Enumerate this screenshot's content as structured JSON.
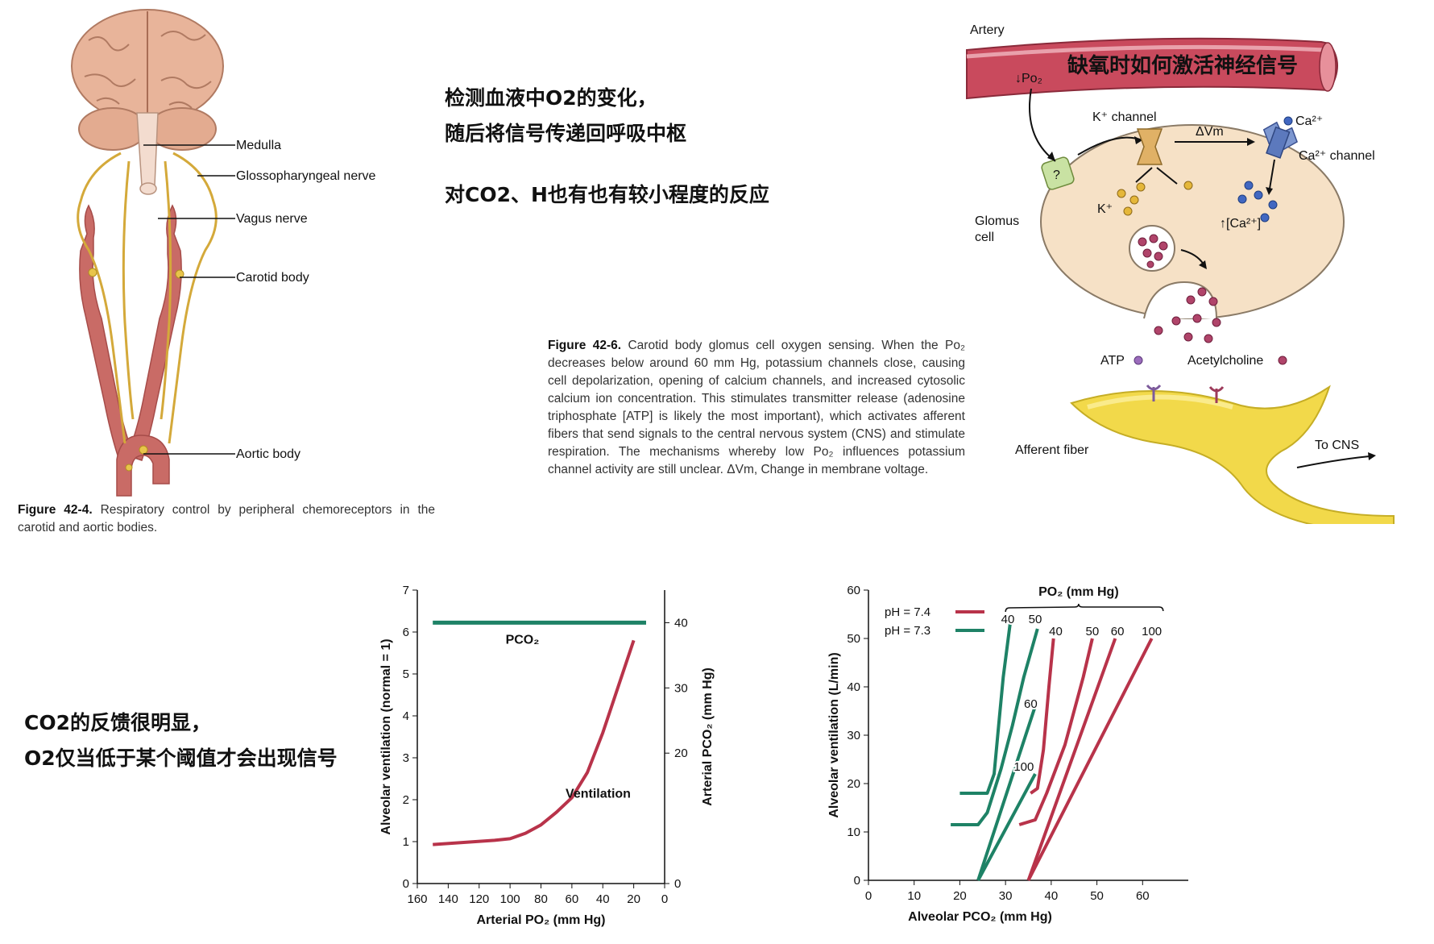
{
  "anatomy": {
    "labels": {
      "medulla": "Medulla",
      "glossopharyngeal": "Glossopharyngeal nerve",
      "vagus": "Vagus nerve",
      "carotid": "Carotid body",
      "aortic": "Aortic body"
    },
    "caption_label": "Figure 42-4.",
    "caption_text": "Respiratory control by peripheral chemoreceptors in the carotid and aortic bodies."
  },
  "notes": {
    "top_line1": "检测血液中O2的变化，",
    "top_line2": "随后将信号传递回呼吸中枢",
    "top_line3": "对CO2、H也有也有较小程度的反应",
    "left_line1": "CO2的反馈很明显，",
    "left_line2": "O2仅当低于某个阈值才会出现信号"
  },
  "glomus": {
    "artery": "Artery",
    "po2": "↓Po₂",
    "title": "缺氧时如何激活神经信号",
    "k_channel": "K⁺ channel",
    "dvm": "ΔVm",
    "ca_ion": "Ca²⁺",
    "ca_channel": "Ca²⁺ channel",
    "question": "?",
    "k_ion": "K⁺",
    "ca_rise": "↑[Ca²⁺]",
    "glomus_cell_1": "Glomus",
    "glomus_cell_2": "cell",
    "atp": "ATP",
    "ach": "Acetylcholine",
    "afferent": "Afferent fiber",
    "to_cns": "To CNS",
    "caption_label": "Figure 42-6.",
    "caption_text": "Carotid body glomus cell oxygen sensing. When the Po₂ decreases below around 60 mm Hg, potassium channels close, causing cell depolarization, opening of calcium channels, and increased cytosolic calcium ion concentration. This stimulates transmitter release (adenosine triphosphate [ATP] is likely the most important), which activates afferent fibers that send signals to the central nervous system (CNS) and stimulate respiration. The mechanisms whereby low Po₂ influences potassium channel activity are still unclear. ΔVm, Change in membrane voltage."
  },
  "colors": {
    "red": "#b8334a",
    "green": "#1e8266"
  },
  "chart_data": [
    {
      "type": "line",
      "xlabel": "Arterial PO₂ (mm Hg)",
      "ylabel": "Alveolar ventilation (normal = 1)",
      "y2label": "Arterial PCO₂ (mm Hg)",
      "xlim": [
        160,
        0
      ],
      "ylim": [
        0,
        7
      ],
      "y2lim": [
        0,
        45
      ],
      "xticks": [
        160,
        140,
        120,
        100,
        80,
        60,
        40,
        20,
        0
      ],
      "yticks": [
        0,
        1,
        2,
        3,
        4,
        5,
        6,
        7
      ],
      "y2ticks": [
        0,
        20,
        30,
        40
      ],
      "series": [
        {
          "name": "Ventilation",
          "color": "#b8334a",
          "x": [
            150,
            130,
            110,
            100,
            90,
            80,
            70,
            60,
            50,
            40,
            30,
            20
          ],
          "y": [
            0.93,
            0.98,
            1.03,
            1.07,
            1.2,
            1.4,
            1.7,
            2.05,
            2.65,
            3.6,
            4.7,
            5.8
          ]
        },
        {
          "name": "PCO₂",
          "color": "#1e8266",
          "axis": "y2",
          "x": [
            150,
            12
          ],
          "y": [
            40,
            40
          ]
        }
      ]
    },
    {
      "type": "line",
      "xlabel": "Alveolar PCO₂ (mm Hg)",
      "ylabel": "Alveolar ventilation (L/min)",
      "xlim": [
        0,
        70
      ],
      "ylim": [
        0,
        60
      ],
      "xticks": [
        0,
        10,
        20,
        30,
        40,
        50,
        60
      ],
      "yticks": [
        0,
        10,
        20,
        30,
        40,
        50,
        60
      ],
      "legend": [
        {
          "label": "pH = 7.4",
          "color": "#b8334a"
        },
        {
          "label": "pH = 7.3",
          "color": "#1e8266"
        }
      ],
      "legend_header": "PO₂ (mm Hg)",
      "series": [
        {
          "name": "pH 7.3, PO₂ 40",
          "label": "40",
          "color": "#1e8266",
          "x": [
            20,
            26,
            27.5,
            28.5,
            29.5,
            31
          ],
          "y": [
            18,
            18,
            22,
            32,
            42,
            53
          ]
        },
        {
          "name": "pH 7.3, PO₂ 50",
          "label": "50",
          "color": "#1e8266",
          "x": [
            18,
            24,
            26,
            29,
            31.5,
            34,
            37
          ],
          "y": [
            11.5,
            11.5,
            14,
            23,
            32,
            42,
            52
          ]
        },
        {
          "name": "pH 7.3, PO₂ 60",
          "label": "60",
          "color": "#1e8266",
          "x": [
            24,
            36.5
          ],
          "y": [
            0,
            36
          ]
        },
        {
          "name": "pH 7.3, PO₂ 100",
          "label": "100",
          "color": "#1e8266",
          "x": [
            24,
            36.5
          ],
          "y": [
            0,
            22
          ]
        },
        {
          "name": "pH 7.4, PO₂ 40",
          "label": "40",
          "color": "#b8334a",
          "x": [
            35.5,
            37,
            38.3,
            39.5,
            40.5
          ],
          "y": [
            18,
            19,
            27,
            40,
            50
          ]
        },
        {
          "name": "pH 7.4, PO₂ 50",
          "label": "50",
          "color": "#b8334a",
          "x": [
            33,
            36.5,
            39,
            43,
            47,
            49
          ],
          "y": [
            11.5,
            12.5,
            18,
            28,
            42,
            50
          ]
        },
        {
          "name": "pH 7.4, PO₂ 60",
          "label": "60",
          "color": "#b8334a",
          "x": [
            35,
            54
          ],
          "y": [
            0,
            50
          ]
        },
        {
          "name": "pH 7.4, PO₂ 100",
          "label": "100",
          "color": "#b8334a",
          "x": [
            35,
            62
          ],
          "y": [
            0,
            50
          ]
        }
      ]
    }
  ]
}
